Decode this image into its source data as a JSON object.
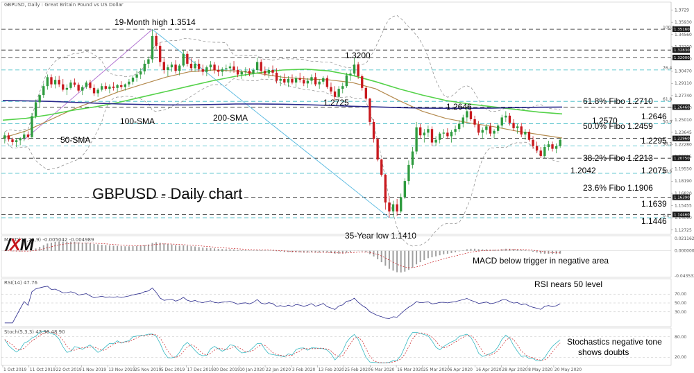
{
  "header": {
    "title": "GBPUSD, Daily : Great Britain Pound vs US Dollar"
  },
  "logo": {
    "x_letter": "X",
    "rest": "M",
    "prefix": "/"
  },
  "colors": {
    "bull": "#2e9b3e",
    "bear": "#c8191e",
    "sma50": "#b48a4e",
    "sma100": "#55d24a",
    "sma200": "#2a2a8c",
    "bands": "#888888",
    "fib": "#35b8c2",
    "trend_up": "#b070d0",
    "trend_down": "#55b8e0"
  },
  "chart_data": {
    "type": "candlestick",
    "title": "GBPUSD - Daily chart",
    "price_axis": {
      "ticks": [
        1.3729,
        1.3593,
        1.3456,
        1.332,
        1.3183,
        1.3047,
        1.2911,
        1.2774,
        1.2638,
        1.2501,
        1.23645,
        1.2228,
        1.20915,
        1.1955,
        1.1819,
        1.1682,
        1.15455,
        1.1409,
        1.12725
      ]
    },
    "price_range": [
      1.124,
      1.378
    ],
    "price_tags": [
      1.3516,
      1.3283,
      1.32,
      1.2646,
      1.2296,
      1.2075,
      1.1639,
      1.1446
    ],
    "x_labels": [
      "1 Oct 2019",
      "11 Oct 2019",
      "22 Oct 2019",
      "1 Nov 2019",
      "13 Nov 2019",
      "25 Nov 2019",
      "5 Dec 2019",
      "17 Dec 2019",
      "30 Dec 2019",
      "10 Jan 2020",
      "22 Jan 2020",
      "3 Feb 2020",
      "13 Feb 2020",
      "25 Feb 2020",
      "6 Mar 2020",
      "16 Mar 2020",
      "25 Mar 2020",
      "6 Apr 2020",
      "16 Apr 2020",
      "28 Apr 2020",
      "8 May 2020",
      "20 May 2020"
    ],
    "horizontal_levels": [
      {
        "value": 1.3516,
        "style": "dashed",
        "color": "#222222"
      },
      {
        "value": 1.3283,
        "style": "dashed",
        "color": "#222222"
      },
      {
        "value": 1.32,
        "style": "dashed",
        "color": "#222222"
      },
      {
        "value": 1.2646,
        "style": "dashed",
        "color": "#222222"
      },
      {
        "value": 1.2296,
        "style": "dashed",
        "color": "#222222"
      },
      {
        "value": 1.2075,
        "style": "dashed",
        "color": "#222222"
      },
      {
        "value": 1.1639,
        "style": "dashed",
        "color": "#222222"
      },
      {
        "value": 1.1446,
        "style": "dashed",
        "color": "#222222"
      },
      {
        "value": 1.3061,
        "style": "dashed",
        "color": "#35b8c2"
      },
      {
        "value": 1.271,
        "style": "dashed",
        "color": "#35b8c2"
      },
      {
        "value": 1.2459,
        "style": "dashed",
        "color": "#35b8c2"
      },
      {
        "value": 1.2213,
        "style": "dashed",
        "color": "#35b8c2"
      },
      {
        "value": 1.1906,
        "style": "dashed",
        "color": "#35b8c2"
      },
      {
        "value": 1.141,
        "style": "dashed",
        "color": "#35b8c2"
      }
    ],
    "fib_labels": [
      "100.0",
      "76.4",
      "61.8",
      "50.0",
      "38.2",
      "23.6",
      "0.0"
    ],
    "annotations": [
      {
        "text": "19-Month high 1.3514",
        "color": "#111111"
      },
      {
        "text": "1.3200",
        "color": "#111111"
      },
      {
        "text": "1.2725",
        "color": "#111111"
      },
      {
        "text": "1.2646",
        "color": "#111111"
      },
      {
        "text": "100-SMA",
        "color": "#46c038"
      },
      {
        "text": "200-SMA",
        "color": "#2a2a8c"
      },
      {
        "text": "50-SMA",
        "color": "#b48a4e"
      },
      {
        "text": "35-Year low 1.1410",
        "color": "#111111"
      },
      {
        "text": "61.8% Fibo 1.2710",
        "color": "#35b8c2"
      },
      {
        "text": "1.2646",
        "color": "#2a2a8c"
      },
      {
        "text": "1.2570",
        "color": "#46c038"
      },
      {
        "text": "50.0% Fibo 1.2459",
        "color": "#35b8c2"
      },
      {
        "text": "1.2295",
        "color": "#2a2a8c"
      },
      {
        "text": "38.2% Fibo 1.2213",
        "color": "#35b8c2"
      },
      {
        "text": "1.2042",
        "color": "#a08cc8"
      },
      {
        "text": "1.2075",
        "color": "#c8191e"
      },
      {
        "text": "23.6% Fibo 1.1906",
        "color": "#35b8c2"
      },
      {
        "text": "1.1639",
        "color": "#c8191e"
      },
      {
        "text": "1.1446",
        "color": "#c8191e"
      }
    ],
    "candles_ohlc": [
      [
        1.2295,
        1.2365,
        1.224,
        1.233
      ],
      [
        1.233,
        1.236,
        1.226,
        1.2285
      ],
      [
        1.2285,
        1.2305,
        1.222,
        1.2255
      ],
      [
        1.2255,
        1.23,
        1.22,
        1.2275
      ],
      [
        1.2275,
        1.231,
        1.222,
        1.23
      ],
      [
        1.23,
        1.238,
        1.2265,
        1.234
      ],
      [
        1.234,
        1.2375,
        1.228,
        1.231
      ],
      [
        1.231,
        1.258,
        1.2295,
        1.2545
      ],
      [
        1.2545,
        1.273,
        1.252,
        1.27
      ],
      [
        1.27,
        1.28,
        1.264,
        1.278
      ],
      [
        1.278,
        1.291,
        1.275,
        1.288
      ],
      [
        1.288,
        1.301,
        1.284,
        1.298
      ],
      [
        1.298,
        1.301,
        1.286,
        1.29
      ],
      [
        1.29,
        1.299,
        1.2855,
        1.295
      ],
      [
        1.295,
        1.2995,
        1.287,
        1.29
      ],
      [
        1.29,
        1.296,
        1.282,
        1.284
      ],
      [
        1.284,
        1.29,
        1.278,
        1.286
      ],
      [
        1.286,
        1.295,
        1.284,
        1.292
      ],
      [
        1.292,
        1.2965,
        1.287,
        1.2895
      ],
      [
        1.2895,
        1.292,
        1.281,
        1.283
      ],
      [
        1.283,
        1.289,
        1.278,
        1.287
      ],
      [
        1.287,
        1.294,
        1.285,
        1.292
      ],
      [
        1.292,
        1.295,
        1.284,
        1.286
      ],
      [
        1.286,
        1.29,
        1.277,
        1.28
      ],
      [
        1.28,
        1.286,
        1.276,
        1.284
      ],
      [
        1.284,
        1.291,
        1.282,
        1.288
      ],
      [
        1.288,
        1.292,
        1.283,
        1.285
      ],
      [
        1.285,
        1.29,
        1.28,
        1.2875
      ],
      [
        1.2875,
        1.2925,
        1.283,
        1.286
      ],
      [
        1.286,
        1.2905,
        1.2815,
        1.289
      ],
      [
        1.289,
        1.2935,
        1.284,
        1.287
      ],
      [
        1.287,
        1.291,
        1.283,
        1.29
      ],
      [
        1.29,
        1.296,
        1.287,
        1.293
      ],
      [
        1.293,
        1.3,
        1.2895,
        1.2975
      ],
      [
        1.2975,
        1.305,
        1.293,
        1.301
      ],
      [
        1.301,
        1.308,
        1.296,
        1.3045
      ],
      [
        1.3045,
        1.317,
        1.301,
        1.313
      ],
      [
        1.313,
        1.321,
        1.308,
        1.318
      ],
      [
        1.318,
        1.3514,
        1.314,
        1.344
      ],
      [
        1.344,
        1.347,
        1.329,
        1.333
      ],
      [
        1.333,
        1.337,
        1.31,
        1.315
      ],
      [
        1.315,
        1.319,
        1.302,
        1.306
      ],
      [
        1.306,
        1.312,
        1.299,
        1.309
      ],
      [
        1.309,
        1.315,
        1.304,
        1.312
      ],
      [
        1.312,
        1.317,
        1.302,
        1.305
      ],
      [
        1.305,
        1.313,
        1.3,
        1.311
      ],
      [
        1.311,
        1.3285,
        1.309,
        1.324
      ],
      [
        1.324,
        1.327,
        1.31,
        1.313
      ],
      [
        1.313,
        1.319,
        1.305,
        1.308
      ],
      [
        1.308,
        1.316,
        1.304,
        1.313
      ],
      [
        1.313,
        1.318,
        1.304,
        1.307
      ],
      [
        1.307,
        1.312,
        1.3,
        1.304
      ],
      [
        1.304,
        1.311,
        1.299,
        1.309
      ],
      [
        1.309,
        1.316,
        1.305,
        1.312
      ],
      [
        1.312,
        1.315,
        1.302,
        1.306
      ],
      [
        1.306,
        1.311,
        1.299,
        1.304
      ],
      [
        1.304,
        1.309,
        1.299,
        1.307
      ],
      [
        1.307,
        1.312,
        1.304,
        1.308
      ],
      [
        1.308,
        1.314,
        1.303,
        1.31
      ],
      [
        1.31,
        1.316,
        1.303,
        1.306
      ],
      [
        1.306,
        1.31,
        1.298,
        1.301
      ],
      [
        1.301,
        1.306,
        1.296,
        1.304
      ],
      [
        1.304,
        1.309,
        1.299,
        1.305
      ],
      [
        1.305,
        1.308,
        1.299,
        1.302
      ],
      [
        1.302,
        1.308,
        1.298,
        1.306
      ],
      [
        1.306,
        1.32,
        1.303,
        1.315
      ],
      [
        1.315,
        1.318,
        1.302,
        1.305
      ],
      [
        1.305,
        1.31,
        1.299,
        1.302
      ],
      [
        1.302,
        1.309,
        1.297,
        1.306
      ],
      [
        1.306,
        1.311,
        1.299,
        1.303
      ],
      [
        1.303,
        1.308,
        1.291,
        1.294
      ],
      [
        1.294,
        1.3,
        1.288,
        1.296
      ],
      [
        1.296,
        1.302,
        1.29,
        1.292
      ],
      [
        1.292,
        1.299,
        1.287,
        1.296
      ],
      [
        1.296,
        1.301,
        1.29,
        1.292
      ],
      [
        1.292,
        1.299,
        1.287,
        1.297
      ],
      [
        1.297,
        1.303,
        1.292,
        1.295
      ],
      [
        1.295,
        1.299,
        1.288,
        1.291
      ],
      [
        1.291,
        1.297,
        1.286,
        1.294
      ],
      [
        1.294,
        1.301,
        1.29,
        1.298
      ],
      [
        1.298,
        1.303,
        1.288,
        1.29
      ],
      [
        1.29,
        1.296,
        1.285,
        1.293
      ],
      [
        1.293,
        1.299,
        1.29,
        1.297
      ],
      [
        1.297,
        1.3,
        1.285,
        1.287
      ],
      [
        1.287,
        1.292,
        1.279,
        1.282
      ],
      [
        1.282,
        1.288,
        1.2725,
        1.276
      ],
      [
        1.276,
        1.288,
        1.274,
        1.285
      ],
      [
        1.285,
        1.292,
        1.28,
        1.288
      ],
      [
        1.288,
        1.303,
        1.286,
        1.3
      ],
      [
        1.3,
        1.306,
        1.294,
        1.302
      ],
      [
        1.302,
        1.32,
        1.299,
        1.312
      ],
      [
        1.312,
        1.315,
        1.296,
        1.299
      ],
      [
        1.299,
        1.301,
        1.283,
        1.286
      ],
      [
        1.286,
        1.288,
        1.272,
        1.274
      ],
      [
        1.274,
        1.275,
        1.244,
        1.248
      ],
      [
        1.248,
        1.251,
        1.225,
        1.229
      ],
      [
        1.229,
        1.23,
        1.204,
        1.206
      ],
      [
        1.206,
        1.207,
        1.187,
        1.189
      ],
      [
        1.189,
        1.19,
        1.15,
        1.158
      ],
      [
        1.158,
        1.165,
        1.141,
        1.148
      ],
      [
        1.148,
        1.16,
        1.142,
        1.156
      ],
      [
        1.156,
        1.162,
        1.143,
        1.148
      ],
      [
        1.148,
        1.168,
        1.146,
        1.164
      ],
      [
        1.164,
        1.185,
        1.162,
        1.182
      ],
      [
        1.182,
        1.205,
        1.178,
        1.2
      ],
      [
        1.2,
        1.22,
        1.196,
        1.215
      ],
      [
        1.215,
        1.248,
        1.212,
        1.242
      ],
      [
        1.242,
        1.246,
        1.23,
        1.233
      ],
      [
        1.233,
        1.24,
        1.225,
        1.236
      ],
      [
        1.236,
        1.244,
        1.231,
        1.24
      ],
      [
        1.24,
        1.243,
        1.221,
        1.225
      ],
      [
        1.225,
        1.232,
        1.221,
        1.228
      ],
      [
        1.228,
        1.237,
        1.224,
        1.235
      ],
      [
        1.235,
        1.24,
        1.23,
        1.236
      ],
      [
        1.236,
        1.241,
        1.229,
        1.232
      ],
      [
        1.232,
        1.239,
        1.225,
        1.237
      ],
      [
        1.237,
        1.244,
        1.233,
        1.24
      ],
      [
        1.24,
        1.25,
        1.237,
        1.246
      ],
      [
        1.246,
        1.256,
        1.242,
        1.253
      ],
      [
        1.253,
        1.2647,
        1.248,
        1.26
      ],
      [
        1.26,
        1.263,
        1.249,
        1.251
      ],
      [
        1.251,
        1.255,
        1.242,
        1.245
      ],
      [
        1.245,
        1.249,
        1.233,
        1.236
      ],
      [
        1.236,
        1.242,
        1.229,
        1.239
      ],
      [
        1.239,
        1.246,
        1.234,
        1.243
      ],
      [
        1.243,
        1.247,
        1.232,
        1.235
      ],
      [
        1.235,
        1.24,
        1.23,
        1.238
      ],
      [
        1.238,
        1.246,
        1.235,
        1.244
      ],
      [
        1.244,
        1.256,
        1.241,
        1.253
      ],
      [
        1.253,
        1.26,
        1.248,
        1.255
      ],
      [
        1.255,
        1.258,
        1.244,
        1.247
      ],
      [
        1.247,
        1.251,
        1.238,
        1.241
      ],
      [
        1.241,
        1.246,
        1.235,
        1.243
      ],
      [
        1.243,
        1.247,
        1.231,
        1.234
      ],
      [
        1.234,
        1.24,
        1.228,
        1.237
      ],
      [
        1.237,
        1.24,
        1.226,
        1.228
      ],
      [
        1.228,
        1.232,
        1.218,
        1.221
      ],
      [
        1.221,
        1.226,
        1.213,
        1.216
      ],
      [
        1.216,
        1.22,
        1.2075,
        1.21
      ],
      [
        1.21,
        1.223,
        1.208,
        1.22
      ],
      [
        1.22,
        1.227,
        1.216,
        1.223
      ],
      [
        1.223,
        1.226,
        1.215,
        1.218
      ],
      [
        1.218,
        1.224,
        1.213,
        1.221
      ],
      [
        1.221,
        1.23,
        1.219,
        1.228
      ]
    ],
    "moving_averages": [
      {
        "name": "50-SMA",
        "values_sampled": [
          1.23,
          1.238,
          1.25,
          1.262,
          1.272,
          1.282,
          1.29,
          1.298,
          1.304,
          1.306,
          1.305,
          1.302,
          1.298,
          1.296,
          1.295,
          1.292,
          1.285,
          1.272,
          1.26,
          1.252,
          1.247,
          1.243,
          1.238,
          1.234,
          1.23
        ]
      },
      {
        "name": "100-SMA",
        "values_sampled": [
          1.25,
          1.252,
          1.256,
          1.261,
          1.265,
          1.27,
          1.276,
          1.282,
          1.288,
          1.294,
          1.299,
          1.303,
          1.306,
          1.307,
          1.305,
          1.3,
          1.293,
          1.285,
          1.278,
          1.272,
          1.268,
          1.265,
          1.262,
          1.259,
          1.257
        ]
      },
      {
        "name": "200-SMA",
        "values_sampled": [
          1.272,
          1.2715,
          1.271,
          1.27,
          1.269,
          1.268,
          1.2675,
          1.267,
          1.267,
          1.2675,
          1.268,
          1.268,
          1.2678,
          1.2672,
          1.2665,
          1.2655,
          1.2648,
          1.264,
          1.2635,
          1.2632,
          1.2632,
          1.2635,
          1.264,
          1.2644,
          1.2646
        ]
      }
    ],
    "macd": {
      "label": "MACD(12,26,9) -0.005042 -0.004989",
      "ticks": [
        0.021162,
        0.0,
        -0.043532
      ],
      "annotation": "MACD below trigger in negative area"
    },
    "rsi": {
      "label": "RSI(14) 47.76",
      "ticks": [
        70.0,
        50.0,
        30.0
      ],
      "annotation": "RSI nears 50 level"
    },
    "stoch": {
      "label": "Stoch(5,3,3) 43.96 48.90",
      "ticks": [
        80.0,
        20.0
      ],
      "annotation_line1": "Stochastics negative tone",
      "annotation_line2": "shows doubts"
    }
  }
}
